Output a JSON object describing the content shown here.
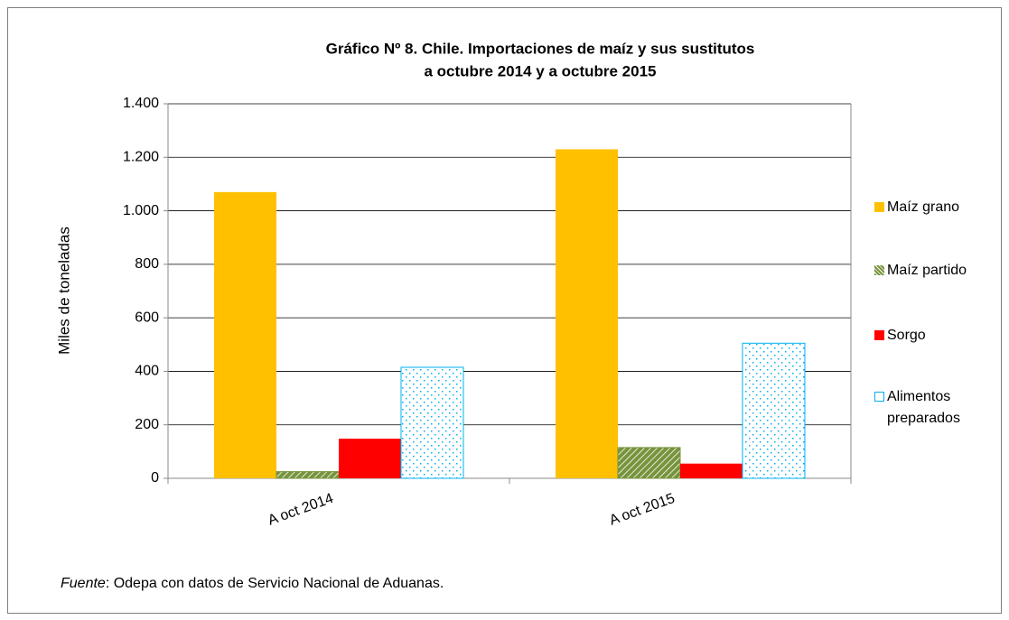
{
  "chart_data": {
    "type": "bar",
    "title": [
      "Gráfico Nº 8. Chile. Importaciones de maíz y sus sustitutos",
      "a octubre 2014 y a octubre 2015"
    ],
    "y_label": "Miles de  toneladas",
    "categories": [
      "A oct 2014",
      "A oct 2015"
    ],
    "series": [
      {
        "name": "Maíz grano",
        "color": "#ffc000",
        "pattern": "solid",
        "values": [
          1070,
          1230
        ]
      },
      {
        "name": "Maíz partido",
        "color": "#77933c",
        "pattern": "hatch",
        "values": [
          25,
          115
        ]
      },
      {
        "name": "Sorgo",
        "color": "#ff0000",
        "pattern": "solid",
        "values": [
          148,
          55
        ]
      },
      {
        "name": "Alimentos preparados",
        "color": "#00b0f0",
        "pattern": "dots",
        "values": [
          415,
          505
        ]
      }
    ],
    "ylim": [
      0,
      1400
    ],
    "yticks": [
      0,
      200,
      400,
      600,
      800,
      {
        "value": 1000,
        "label": "1.000"
      },
      {
        "value": 1200,
        "label": "1.200"
      },
      {
        "value": 1400,
        "label": "1.400"
      }
    ],
    "grid": true,
    "legend": "right",
    "source": [
      "Fuente",
      ": Odepa con datos de Servicio Nacional de Aduanas."
    ]
  }
}
